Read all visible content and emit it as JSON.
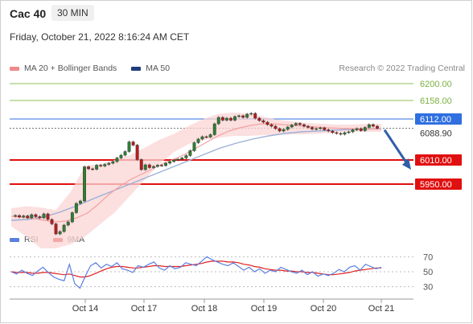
{
  "header": {
    "instrument": "Cac 40",
    "timeframe": "30 MIN",
    "datetime": "Friday, October 21, 2022 8:16:24 AM CET",
    "credit": "Research © 2022 Trading Central"
  },
  "legend_main": [
    {
      "label": "MA 20 + Bollinger Bands",
      "color": "#f08a8a"
    },
    {
      "label": "MA 50",
      "color": "#1f3d7a"
    }
  ],
  "legend_rsi": [
    {
      "label": "RSI",
      "color": "#5b7fe0"
    },
    {
      "label": "9MA",
      "color": "#e02020"
    }
  ],
  "chart_data": [
    {
      "type": "candlestick",
      "title": "Cac 40 30 MIN",
      "x_tick_labels": [
        "Oct 14",
        "Oct 17",
        "Oct 18",
        "Oct 19",
        "Oct 20",
        "Oct 21"
      ],
      "last_price": 6088.9,
      "levels": [
        {
          "value": 6200.0,
          "label": "6200.00",
          "color": "#8fc05a",
          "kind": "target"
        },
        {
          "value": 6158.0,
          "label": "6158.00",
          "color": "#8fc05a",
          "kind": "target"
        },
        {
          "value": 6112.0,
          "label": "6112.00",
          "color": "#2f6fe0",
          "kind": "pivot"
        },
        {
          "value": 6010.0,
          "label": "6010.00",
          "color": "#e01010",
          "kind": "support"
        },
        {
          "value": 5950.0,
          "label": "5950.00",
          "color": "#e01010",
          "kind": "support"
        }
      ],
      "last_price_label": "6088.90",
      "close_series": [
        5870,
        5872,
        5868,
        5871,
        5866,
        5874,
        5869,
        5866,
        5876,
        5862,
        5851,
        5826,
        5832,
        5848,
        5856,
        5879,
        5902,
        5908,
        5993,
        5988,
        5987,
        5997,
        5995,
        5999,
        6002,
        6006,
        6015,
        6022,
        6031,
        6055,
        6047,
        6011,
        5986,
        5998,
        5991,
        5994,
        5997,
        5996,
        6002,
        6006,
        6010,
        6012,
        6015,
        6021,
        6033,
        6053,
        6062,
        6068,
        6067,
        6073,
        6100,
        6116,
        6109,
        6114,
        6109,
        6118,
        6120,
        6116,
        6124,
        6126,
        6114,
        6108,
        6104,
        6098,
        6094,
        6088,
        6082,
        6086,
        6092,
        6097,
        6101,
        6098,
        6094,
        6091,
        6087,
        6088,
        6090,
        6085,
        6082,
        6078,
        6076,
        6074,
        6078,
        6080,
        6085,
        6088,
        6083,
        6091,
        6098,
        6094,
        6089
      ],
      "ma20_approx": [
        5870,
        5868,
        5865,
        5860,
        5856,
        5858,
        5866,
        5878,
        5900,
        5925,
        5945,
        5962,
        5975,
        5988,
        6002,
        6012,
        6025,
        6040,
        6055,
        6070,
        6082,
        6090,
        6096,
        6100,
        6100,
        6098,
        6096,
        6094,
        6092,
        6090,
        6089,
        6088,
        6087,
        6087,
        6087
      ],
      "ma50_approx": [
        5860,
        5862,
        5868,
        5880,
        5895,
        5912,
        5928,
        5944,
        5960,
        5976,
        5992,
        6008,
        6024,
        6040,
        6052,
        6062,
        6070,
        6076,
        6080,
        6082,
        6084,
        6086,
        6087,
        6088
      ],
      "bollinger_upper_approx": [
        5890,
        5895,
        5892,
        5885,
        5930,
        5996,
        6000,
        6010,
        6022,
        6040,
        6060,
        6075,
        6095,
        6112,
        6125,
        6128,
        6126,
        6118,
        6110,
        6106,
        6102,
        6100,
        6098,
        6098,
        6100,
        6100
      ],
      "bollinger_lower_approx": [
        5845,
        5820,
        5790,
        5790,
        5800,
        5820,
        5850,
        5880,
        5920,
        5960,
        6000,
        6030,
        6050,
        6060,
        6065,
        6070,
        6070,
        6072,
        6073,
        6074,
        6074,
        6076,
        6078,
        6080,
        6080,
        6080
      ],
      "forecast_arrow": {
        "from": 6088.9,
        "to": 6010.0
      }
    },
    {
      "type": "line",
      "title": "RSI",
      "y_ticks": [
        70,
        50,
        30
      ],
      "ylim": [
        20,
        80
      ],
      "series": [
        {
          "name": "RSI",
          "color": "#5b7fe0",
          "values": [
            50,
            47,
            52,
            48,
            45,
            51,
            56,
            49,
            43,
            40,
            38,
            60,
            34,
            28,
            44,
            58,
            62,
            55,
            60,
            57,
            62,
            54,
            52,
            49,
            58,
            56,
            60,
            63,
            55,
            52,
            58,
            54,
            56,
            62,
            60,
            58,
            64,
            70,
            66,
            63,
            60,
            58,
            62,
            57,
            52,
            56,
            50,
            54,
            48,
            52,
            50,
            56,
            53,
            50,
            48,
            52,
            46,
            50,
            44,
            47,
            45,
            48,
            53,
            50,
            56,
            58,
            52,
            60,
            57,
            54,
            56
          ]
        },
        {
          "name": "9MA",
          "color": "#e02020",
          "values": [
            50,
            49,
            49,
            49,
            48,
            48,
            49,
            49,
            48,
            47,
            46,
            47,
            45,
            43,
            43,
            45,
            48,
            51,
            54,
            56,
            57,
            57,
            56,
            55,
            55,
            56,
            57,
            58,
            58,
            57,
            57,
            57,
            57,
            58,
            59,
            60,
            61,
            63,
            64,
            64,
            64,
            63,
            63,
            62,
            60,
            59,
            57,
            56,
            54,
            53,
            52,
            52,
            51,
            51,
            50,
            50,
            49,
            49,
            48,
            47,
            46,
            46,
            47,
            48,
            49,
            51,
            52,
            53,
            54,
            55,
            55
          ]
        }
      ]
    }
  ]
}
